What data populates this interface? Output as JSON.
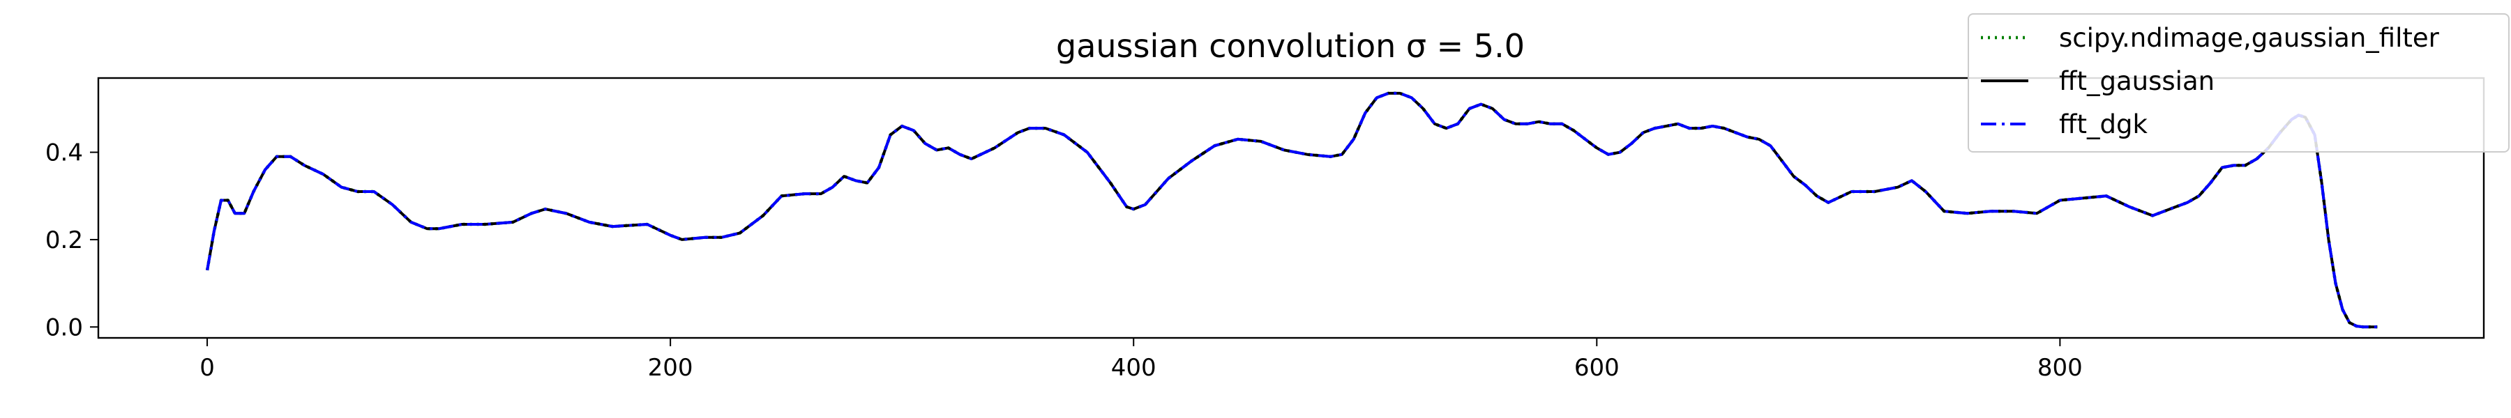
{
  "chart_data": {
    "type": "line",
    "title": "gaussian convolution σ = 5.0",
    "xlabel": "",
    "ylabel": "",
    "xlim": [
      -47,
      983
    ],
    "ylim": [
      -0.025,
      0.57
    ],
    "xticks": [
      0,
      200,
      400,
      600,
      800
    ],
    "yticks": [
      0.0,
      0.2,
      0.4
    ],
    "grid": false,
    "legend_position": "top-right",
    "colors": {
      "scipy": "#008000",
      "fft_gaussian": "#000000",
      "fft_dgk": "#0000ff",
      "axes": "#000000",
      "background": "#ffffff"
    },
    "x": [
      0,
      3,
      6,
      9,
      12,
      16,
      20,
      25,
      30,
      36,
      42,
      50,
      58,
      65,
      72,
      80,
      88,
      95,
      100,
      110,
      120,
      132,
      140,
      146,
      155,
      165,
      175,
      190,
      200,
      205,
      215,
      222,
      230,
      240,
      248,
      258,
      265,
      270,
      275,
      280,
      285,
      290,
      295,
      300,
      305,
      310,
      315,
      320,
      325,
      330,
      340,
      350,
      355,
      362,
      370,
      380,
      390,
      397,
      400,
      405,
      415,
      425,
      435,
      445,
      455,
      465,
      475,
      485,
      490,
      495,
      500,
      505,
      510,
      515,
      520,
      525,
      530,
      535,
      540,
      545,
      550,
      555,
      560,
      565,
      570,
      575,
      580,
      585,
      590,
      595,
      600,
      605,
      610,
      615,
      620,
      625,
      630,
      635,
      640,
      645,
      650,
      655,
      660,
      665,
      670,
      675,
      680,
      685,
      690,
      695,
      700,
      710,
      720,
      730,
      736,
      742,
      750,
      760,
      770,
      780,
      790,
      800,
      810,
      820,
      830,
      840,
      850,
      855,
      860,
      865,
      870,
      875,
      880,
      885,
      890,
      895,
      900,
      903,
      906,
      910,
      913,
      916,
      919,
      922,
      925,
      928,
      931,
      934,
      937
    ],
    "series": [
      {
        "name": "scipy.ndimage,gaussian_filter",
        "style": "dotted",
        "values": [
          0.13,
          0.22,
          0.29,
          0.29,
          0.26,
          0.26,
          0.31,
          0.36,
          0.39,
          0.39,
          0.37,
          0.35,
          0.32,
          0.31,
          0.31,
          0.28,
          0.24,
          0.225,
          0.225,
          0.235,
          0.235,
          0.24,
          0.26,
          0.27,
          0.26,
          0.24,
          0.23,
          0.235,
          0.21,
          0.2,
          0.205,
          0.205,
          0.215,
          0.255,
          0.3,
          0.305,
          0.305,
          0.32,
          0.345,
          0.335,
          0.33,
          0.365,
          0.44,
          0.46,
          0.45,
          0.42,
          0.405,
          0.41,
          0.395,
          0.385,
          0.41,
          0.445,
          0.455,
          0.455,
          0.44,
          0.4,
          0.33,
          0.275,
          0.27,
          0.28,
          0.34,
          0.38,
          0.415,
          0.43,
          0.425,
          0.405,
          0.395,
          0.39,
          0.395,
          0.43,
          0.49,
          0.525,
          0.535,
          0.535,
          0.525,
          0.5,
          0.465,
          0.455,
          0.465,
          0.5,
          0.51,
          0.5,
          0.475,
          0.465,
          0.465,
          0.47,
          0.465,
          0.465,
          0.45,
          0.43,
          0.41,
          0.395,
          0.4,
          0.42,
          0.445,
          0.455,
          0.46,
          0.465,
          0.455,
          0.455,
          0.46,
          0.455,
          0.445,
          0.435,
          0.43,
          0.415,
          0.38,
          0.345,
          0.325,
          0.3,
          0.285,
          0.31,
          0.31,
          0.32,
          0.335,
          0.31,
          0.265,
          0.26,
          0.265,
          0.265,
          0.26,
          0.29,
          0.295,
          0.3,
          0.275,
          0.255,
          0.275,
          0.285,
          0.3,
          0.33,
          0.365,
          0.37,
          0.37,
          0.385,
          0.41,
          0.445,
          0.475,
          0.485,
          0.48,
          0.44,
          0.33,
          0.2,
          0.1,
          0.04,
          0.01,
          0.002,
          0.0,
          0.0,
          0.0
        ]
      },
      {
        "name": "fft_gaussian",
        "style": "solid",
        "values": [
          0.13,
          0.22,
          0.29,
          0.29,
          0.26,
          0.26,
          0.31,
          0.36,
          0.39,
          0.39,
          0.37,
          0.35,
          0.32,
          0.31,
          0.31,
          0.28,
          0.24,
          0.225,
          0.225,
          0.235,
          0.235,
          0.24,
          0.26,
          0.27,
          0.26,
          0.24,
          0.23,
          0.235,
          0.21,
          0.2,
          0.205,
          0.205,
          0.215,
          0.255,
          0.3,
          0.305,
          0.305,
          0.32,
          0.345,
          0.335,
          0.33,
          0.365,
          0.44,
          0.46,
          0.45,
          0.42,
          0.405,
          0.41,
          0.395,
          0.385,
          0.41,
          0.445,
          0.455,
          0.455,
          0.44,
          0.4,
          0.33,
          0.275,
          0.27,
          0.28,
          0.34,
          0.38,
          0.415,
          0.43,
          0.425,
          0.405,
          0.395,
          0.39,
          0.395,
          0.43,
          0.49,
          0.525,
          0.535,
          0.535,
          0.525,
          0.5,
          0.465,
          0.455,
          0.465,
          0.5,
          0.51,
          0.5,
          0.475,
          0.465,
          0.465,
          0.47,
          0.465,
          0.465,
          0.45,
          0.43,
          0.41,
          0.395,
          0.4,
          0.42,
          0.445,
          0.455,
          0.46,
          0.465,
          0.455,
          0.455,
          0.46,
          0.455,
          0.445,
          0.435,
          0.43,
          0.415,
          0.38,
          0.345,
          0.325,
          0.3,
          0.285,
          0.31,
          0.31,
          0.32,
          0.335,
          0.31,
          0.265,
          0.26,
          0.265,
          0.265,
          0.26,
          0.29,
          0.295,
          0.3,
          0.275,
          0.255,
          0.275,
          0.285,
          0.3,
          0.33,
          0.365,
          0.37,
          0.37,
          0.385,
          0.41,
          0.445,
          0.475,
          0.485,
          0.48,
          0.44,
          0.33,
          0.2,
          0.1,
          0.04,
          0.01,
          0.002,
          0.0,
          0.0,
          0.0
        ]
      },
      {
        "name": "fft_dgk",
        "style": "dashdot",
        "values": [
          0.13,
          0.22,
          0.29,
          0.29,
          0.26,
          0.26,
          0.31,
          0.36,
          0.39,
          0.39,
          0.37,
          0.35,
          0.32,
          0.31,
          0.31,
          0.28,
          0.24,
          0.225,
          0.225,
          0.235,
          0.235,
          0.24,
          0.26,
          0.27,
          0.26,
          0.24,
          0.23,
          0.235,
          0.21,
          0.2,
          0.205,
          0.205,
          0.215,
          0.255,
          0.3,
          0.305,
          0.305,
          0.32,
          0.345,
          0.335,
          0.33,
          0.365,
          0.44,
          0.46,
          0.45,
          0.42,
          0.405,
          0.41,
          0.395,
          0.385,
          0.41,
          0.445,
          0.455,
          0.455,
          0.44,
          0.4,
          0.33,
          0.275,
          0.27,
          0.28,
          0.34,
          0.38,
          0.415,
          0.43,
          0.425,
          0.405,
          0.395,
          0.39,
          0.395,
          0.43,
          0.49,
          0.525,
          0.535,
          0.535,
          0.525,
          0.5,
          0.465,
          0.455,
          0.465,
          0.5,
          0.51,
          0.5,
          0.475,
          0.465,
          0.465,
          0.47,
          0.465,
          0.465,
          0.45,
          0.43,
          0.41,
          0.395,
          0.4,
          0.42,
          0.445,
          0.455,
          0.46,
          0.465,
          0.455,
          0.455,
          0.46,
          0.455,
          0.445,
          0.435,
          0.43,
          0.415,
          0.38,
          0.345,
          0.325,
          0.3,
          0.285,
          0.31,
          0.31,
          0.32,
          0.335,
          0.31,
          0.265,
          0.26,
          0.265,
          0.265,
          0.26,
          0.29,
          0.295,
          0.3,
          0.275,
          0.255,
          0.275,
          0.285,
          0.3,
          0.33,
          0.365,
          0.37,
          0.37,
          0.385,
          0.41,
          0.445,
          0.475,
          0.485,
          0.48,
          0.44,
          0.33,
          0.2,
          0.1,
          0.04,
          0.01,
          0.002,
          0.0,
          0.0,
          0.0
        ]
      }
    ]
  }
}
